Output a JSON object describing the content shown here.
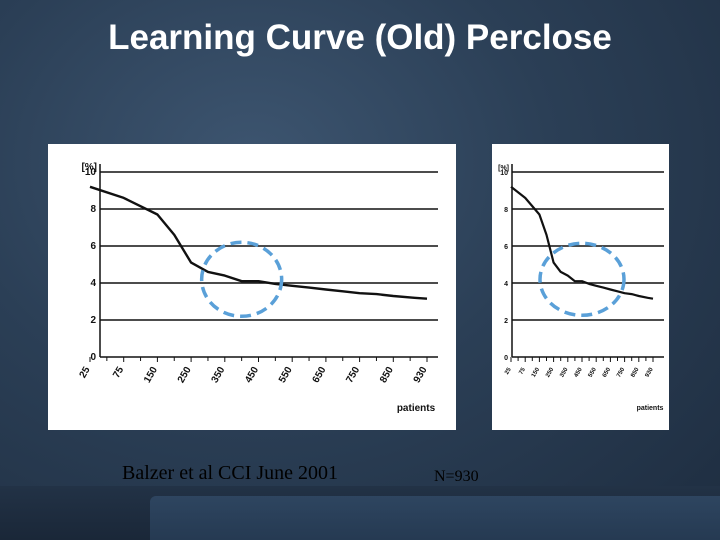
{
  "slide": {
    "title": "Learning Curve (Old) Perclose",
    "citation": "Balzer et al CCI June 2001",
    "n_label": "N=930"
  },
  "colors": {
    "background": "#2b3f56",
    "curve": "#111111",
    "highlight_circle": "#5aa0d8"
  },
  "chart_data": [
    {
      "type": "line",
      "ylabel": "[%]",
      "xlabel": "patients",
      "ylim": [
        0,
        10
      ],
      "yticks": [
        0,
        2,
        4,
        6,
        8,
        10
      ],
      "xlim": [
        25,
        930
      ],
      "xticks": [
        25,
        75,
        150,
        250,
        350,
        450,
        550,
        650,
        750,
        850,
        930
      ],
      "grid": "horizontal",
      "x": [
        25,
        75,
        150,
        200,
        250,
        300,
        350,
        400,
        450,
        500,
        550,
        600,
        650,
        700,
        750,
        800,
        850,
        900,
        930
      ],
      "y": [
        9.2,
        8.6,
        7.7,
        6.6,
        5.1,
        4.6,
        4.4,
        4.1,
        4.1,
        3.95,
        3.85,
        3.75,
        3.65,
        3.55,
        3.45,
        3.4,
        3.3,
        3.2,
        3.15
      ],
      "highlight": {
        "shape": "dashed-circle",
        "x_center": 400,
        "y_center": 4.2
      }
    },
    {
      "type": "line",
      "ylabel": "[%]",
      "xlabel": "patients",
      "ylim": [
        0,
        10
      ],
      "yticks": [
        0,
        2,
        4,
        6,
        8,
        10
      ],
      "xlim": [
        25,
        930
      ],
      "xticks": [
        25,
        75,
        150,
        250,
        350,
        450,
        550,
        650,
        750,
        850,
        930
      ],
      "grid": "horizontal",
      "x": [
        25,
        75,
        150,
        200,
        250,
        300,
        350,
        400,
        450,
        500,
        550,
        600,
        650,
        700,
        750,
        800,
        850,
        900,
        930
      ],
      "y": [
        9.2,
        8.6,
        7.7,
        6.6,
        5.1,
        4.6,
        4.4,
        4.1,
        4.1,
        3.95,
        3.85,
        3.75,
        3.65,
        3.55,
        3.45,
        3.4,
        3.3,
        3.2,
        3.15
      ],
      "highlight": {
        "shape": "dashed-circle",
        "x_center": 450,
        "y_center": 4.2
      }
    }
  ]
}
